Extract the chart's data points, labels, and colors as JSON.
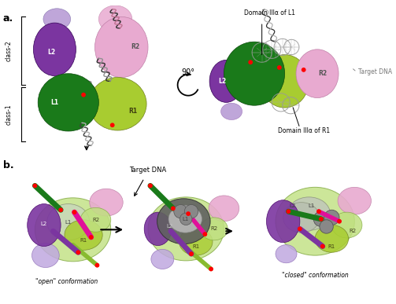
{
  "panel_a_label": "a.",
  "panel_b_label": "b.",
  "class2_label": "class-2",
  "class1_label": "class-1",
  "rotation_label": "90°",
  "open_label": "\"open\" conformation",
  "closed_label": "\"closed\" conformation",
  "target_dna_label": "Target DNA",
  "domain_l1_label": "Domain IIIα of L1",
  "domain_r1_label": "Domain IIIα of R1",
  "colors": {
    "green_dark": "#1a7a1a",
    "green_light": "#a8cc30",
    "purple_dark": "#7b35a0",
    "purple_light": "#b090d0",
    "pink_light": "#e8aad0",
    "magenta": "#e0109a",
    "gray_light": "#c8c8c8",
    "gray_mid": "#909090",
    "gray_dark": "#505050",
    "red": "#ff0000",
    "light_green_blob": "#c0e080",
    "lilac": "#c0a8e0"
  },
  "bg_color": "#ffffff"
}
